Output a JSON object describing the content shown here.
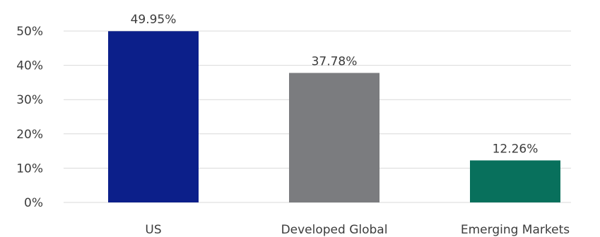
{
  "chart_data": {
    "type": "bar",
    "title": "",
    "xlabel": "",
    "ylabel": "",
    "categories": [
      "US",
      "Developed Global",
      "Emerging Markets"
    ],
    "values": [
      49.95,
      37.78,
      12.26
    ],
    "data_labels": [
      "49.95%",
      "37.78%",
      "12.26%"
    ],
    "ylim": [
      0,
      50
    ],
    "yticks": [
      0,
      10,
      20,
      30,
      40,
      50
    ],
    "ytick_labels": [
      "0%",
      "10%",
      "20%",
      "30%",
      "40%",
      "50%"
    ],
    "grid": true,
    "legend": "none",
    "colors": [
      "#0c1f8a",
      "#7b7c7f",
      "#08705c"
    ],
    "gridline_color": "#d9d9d9",
    "text_color": "#3c3c3c"
  }
}
